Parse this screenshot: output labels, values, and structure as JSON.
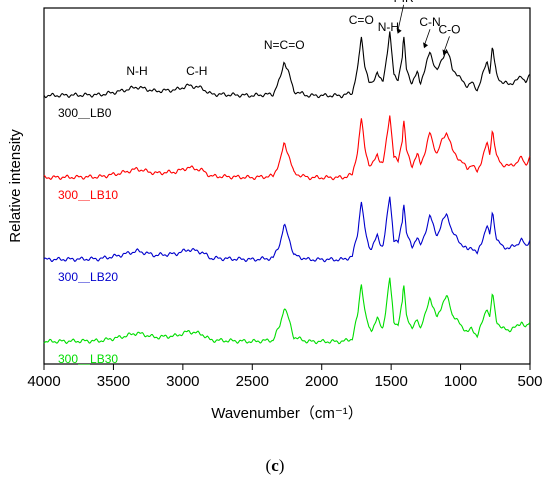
{
  "chart_data": {
    "type": "line",
    "xlabel": "Wavenumber（cm⁻¹）",
    "ylabel": "Relative intensity",
    "xlim": [
      4000,
      500
    ],
    "x_reversed": true,
    "x_ticks": [
      4000,
      3500,
      3000,
      2500,
      2000,
      1500,
      1000,
      500
    ],
    "y_ticks_shown": false,
    "caption": "(c)",
    "caption_letter": "c",
    "annotations": [
      {
        "text": "N-H",
        "x": 3330
      },
      {
        "text": "C-H",
        "x": 2900
      },
      {
        "text": "N=C=O",
        "x": 2270
      },
      {
        "text": "C=O",
        "x": 1715
      },
      {
        "text": "N-H",
        "x": 1520
      },
      {
        "text": "PIR",
        "x": 1410,
        "arrow": true
      },
      {
        "text": "C-N",
        "x": 1220,
        "arrow": true
      },
      {
        "text": "C-O",
        "x": 1080,
        "arrow": true
      }
    ],
    "series": [
      {
        "name": "300＿LB0",
        "color": "#000000",
        "offset": 3.0
      },
      {
        "name": "300＿LB10",
        "color": "#ff0000",
        "offset": 2.0
      },
      {
        "name": "300＿LB20",
        "color": "#0000cc",
        "offset": 1.0
      },
      {
        "name": "300＿LB30",
        "color": "#00dd00",
        "offset": 0.0
      }
    ],
    "spectrum_profile": {
      "x": [
        4000,
        3600,
        3450,
        3330,
        3200,
        3050,
        2960,
        2900,
        2860,
        2800,
        2500,
        2350,
        2300,
        2270,
        2240,
        2200,
        2100,
        1850,
        1780,
        1740,
        1715,
        1690,
        1660,
        1640,
        1600,
        1580,
        1560,
        1540,
        1510,
        1480,
        1450,
        1420,
        1410,
        1390,
        1350,
        1310,
        1290,
        1260,
        1220,
        1200,
        1170,
        1130,
        1100,
        1080,
        1060,
        1020,
        1000,
        950,
        920,
        880,
        850,
        810,
        790,
        770,
        760,
        740,
        700,
        650,
        600,
        560,
        530,
        500
      ],
      "y": [
        0.02,
        0.03,
        0.08,
        0.14,
        0.08,
        0.1,
        0.16,
        0.14,
        0.12,
        0.04,
        0.02,
        0.04,
        0.25,
        0.5,
        0.35,
        0.08,
        0.02,
        0.02,
        0.06,
        0.4,
        0.85,
        0.45,
        0.2,
        0.18,
        0.35,
        0.25,
        0.2,
        0.45,
        0.9,
        0.3,
        0.25,
        0.55,
        0.85,
        0.4,
        0.18,
        0.35,
        0.2,
        0.35,
        0.65,
        0.5,
        0.35,
        0.55,
        0.65,
        0.55,
        0.4,
        0.3,
        0.25,
        0.15,
        0.2,
        0.1,
        0.25,
        0.5,
        0.35,
        0.7,
        0.55,
        0.3,
        0.2,
        0.18,
        0.22,
        0.3,
        0.2,
        0.3
      ]
    }
  }
}
